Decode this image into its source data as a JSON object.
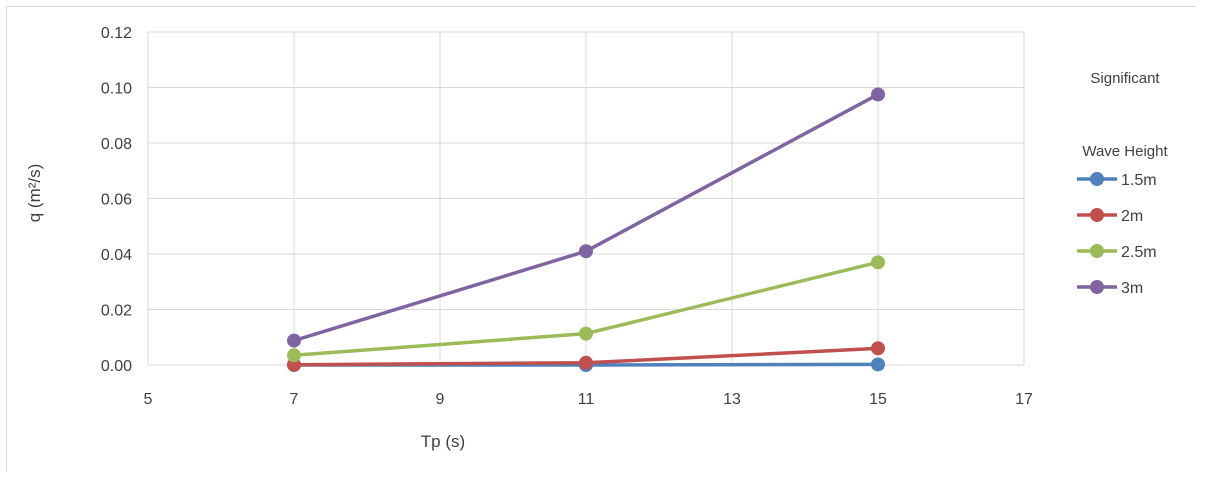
{
  "chart_data": {
    "type": "line",
    "xlabel": "Tp (s)",
    "ylabel": "q (m²/s)",
    "xlim": [
      5,
      17
    ],
    "ylim": [
      0,
      0.12
    ],
    "x_ticks": [
      "5",
      "7",
      "9",
      "11",
      "13",
      "15",
      "17"
    ],
    "y_ticks": [
      "0.00",
      "0.02",
      "0.04",
      "0.06",
      "0.08",
      "0.10",
      "0.12"
    ],
    "grid": true,
    "legend_placement": "right",
    "legend_title_line1": "Significant",
    "legend_title_line2": "Wave Height",
    "x": [
      7,
      11,
      15
    ],
    "series": [
      {
        "name": "1.5m",
        "color": "#4f81bd",
        "values": [
          0.0,
          0.0,
          0.0002
        ]
      },
      {
        "name": "2m",
        "color": "#c0504d",
        "values": [
          0.0001,
          0.0008,
          0.006
        ]
      },
      {
        "name": "2.5m",
        "color": "#9bbb59",
        "values": [
          0.0035,
          0.0113,
          0.037
        ]
      },
      {
        "name": "3m",
        "color": "#8064a2",
        "values": [
          0.0088,
          0.041,
          0.0975
        ]
      }
    ]
  }
}
